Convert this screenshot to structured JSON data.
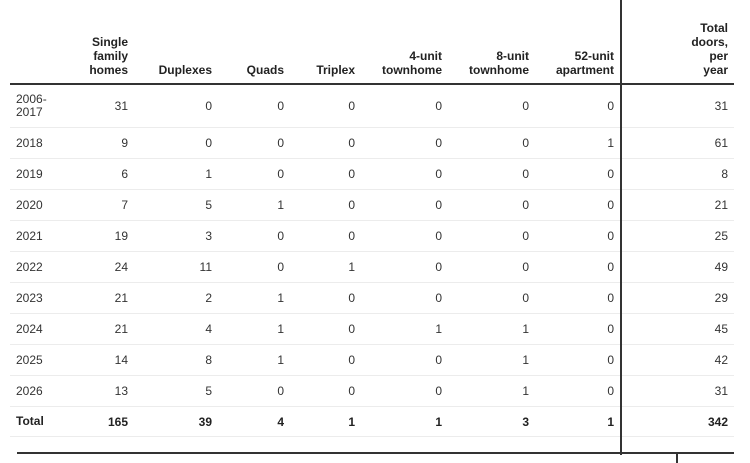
{
  "table": {
    "headers": {
      "year": "",
      "single_family": "Single family homes",
      "duplexes": "Duplexes",
      "quads": "Quads",
      "triplex": "Triplex",
      "townhome4": "4-unit townhome",
      "townhome8": "8-unit townhome",
      "apartment52": "52-unit apartment",
      "total_doors": "Total doors, per year"
    },
    "rows": [
      {
        "year": "2006-2017",
        "single_family": "31",
        "duplexes": "0",
        "quads": "0",
        "triplex": "0",
        "townhome4": "0",
        "townhome8": "0",
        "apartment52": "0",
        "total_doors": "31"
      },
      {
        "year": "2018",
        "single_family": "9",
        "duplexes": "0",
        "quads": "0",
        "triplex": "0",
        "townhome4": "0",
        "townhome8": "0",
        "apartment52": "1",
        "total_doors": "61"
      },
      {
        "year": "2019",
        "single_family": "6",
        "duplexes": "1",
        "quads": "0",
        "triplex": "0",
        "townhome4": "0",
        "townhome8": "0",
        "apartment52": "0",
        "total_doors": "8"
      },
      {
        "year": "2020",
        "single_family": "7",
        "duplexes": "5",
        "quads": "1",
        "triplex": "0",
        "townhome4": "0",
        "townhome8": "0",
        "apartment52": "0",
        "total_doors": "21"
      },
      {
        "year": "2021",
        "single_family": "19",
        "duplexes": "3",
        "quads": "0",
        "triplex": "0",
        "townhome4": "0",
        "townhome8": "0",
        "apartment52": "0",
        "total_doors": "25"
      },
      {
        "year": "2022",
        "single_family": "24",
        "duplexes": "11",
        "quads": "0",
        "triplex": "1",
        "townhome4": "0",
        "townhome8": "0",
        "apartment52": "0",
        "total_doors": "49"
      },
      {
        "year": "2023",
        "single_family": "21",
        "duplexes": "2",
        "quads": "1",
        "triplex": "0",
        "townhome4": "0",
        "townhome8": "0",
        "apartment52": "0",
        "total_doors": "29"
      },
      {
        "year": "2024",
        "single_family": "21",
        "duplexes": "4",
        "quads": "1",
        "triplex": "0",
        "townhome4": "1",
        "townhome8": "1",
        "apartment52": "0",
        "total_doors": "45"
      },
      {
        "year": "2025",
        "single_family": "14",
        "duplexes": "8",
        "quads": "1",
        "triplex": "0",
        "townhome4": "0",
        "townhome8": "1",
        "apartment52": "0",
        "total_doors": "42"
      },
      {
        "year": "2026",
        "single_family": "13",
        "duplexes": "5",
        "quads": "0",
        "triplex": "0",
        "townhome4": "0",
        "townhome8": "1",
        "apartment52": "0",
        "total_doors": "31"
      }
    ],
    "totals": {
      "label": "Total",
      "single_family": "165",
      "duplexes": "39",
      "quads": "4",
      "triplex": "1",
      "townhome4": "1",
      "townhome8": "3",
      "apartment52": "1",
      "total_doors": "342"
    }
  }
}
